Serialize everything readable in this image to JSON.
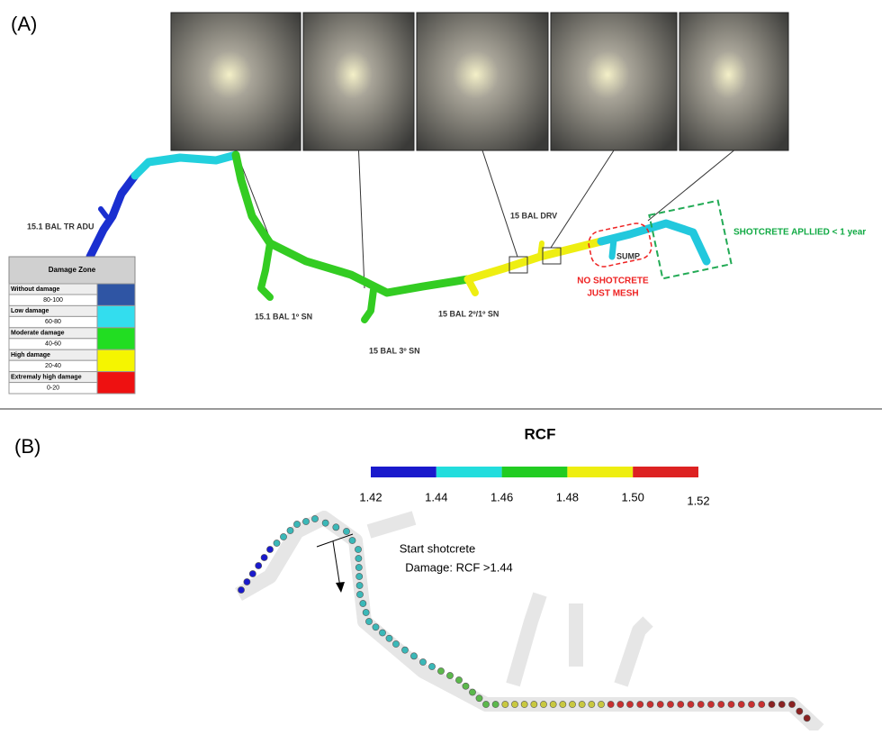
{
  "panel_a": {
    "label": "(A)",
    "tunnel_labels": [
      "15.1 BAL TR ADU",
      "15.1 BAL 1º SN",
      "15 BAL 3º SN",
      "15 BAL 2º/1º SN",
      "15 BAL DRV",
      "SUMP"
    ],
    "no_shotcrete": [
      "NO SHOTCRETE",
      "JUST MESH"
    ],
    "shotcrete_applied": "SHOTCRETE  APLLIED < 1 year",
    "legend": {
      "title": "Damage Zone",
      "rows": [
        {
          "name": "Without damage",
          "range": "80-100",
          "color": "#2f55a4"
        },
        {
          "name": "Low damage",
          "range": "60-80",
          "color": "#33ddee"
        },
        {
          "name": "Moderate damage",
          "range": "40-60",
          "color": "#22dd22"
        },
        {
          "name": "High damage",
          "range": "20-40",
          "color": "#f5f500"
        },
        {
          "name": "Extremaly high damage",
          "range": "0-20",
          "color": "#ee1111"
        }
      ]
    }
  },
  "panel_b": {
    "label": "(B)",
    "title": "RCF",
    "colorbar": {
      "labels": [
        "1.42",
        "1.44",
        "1.46",
        "1.48",
        "1.50",
        "1.52"
      ],
      "colors": [
        "#1a1acc",
        "#22dddd",
        "#22cc22",
        "#eeee11",
        "#dd2222"
      ]
    },
    "annotation": [
      "Start shotcrete",
      "Damage: RCF >1.44"
    ]
  }
}
